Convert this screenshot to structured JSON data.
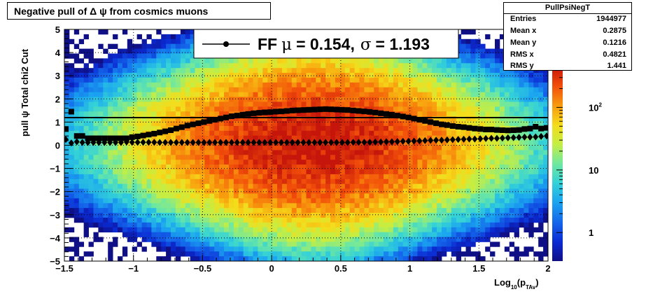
{
  "title": "Negative pull of Δ ψ from cosmics muons",
  "stats": {
    "name": "PullPsiNegT",
    "rows": [
      {
        "key": "Entries",
        "value": "1944977"
      },
      {
        "key": "Mean x",
        "value": "0.2875"
      },
      {
        "key": "Mean y",
        "value": "0.1216"
      },
      {
        "key": "RMS x",
        "value": "0.4821"
      },
      {
        "key": "RMS y",
        "value": "1.441"
      }
    ]
  },
  "colors": {
    "background": "#ffffff",
    "frame": "#000000",
    "grid": "#000000",
    "markers": "#000000",
    "palette": [
      "#0f0f86",
      "#0b2bd3",
      "#1467ea",
      "#1aa3f0",
      "#33d1d8",
      "#6fe8a0",
      "#c4ee44",
      "#f5dc1a",
      "#f89a0d",
      "#f24e0a",
      "#c6160b"
    ]
  },
  "chart_data": {
    "type": "heatmap",
    "title": "Negative pull of Δ ψ from cosmics muons",
    "xlabel": "Log",
    "xlabel_sub": "10",
    "xlabel_tail": "(p",
    "xlabel_sub2": "TAv",
    "xlabel_close": ")",
    "ylabel": "pull ψ   Total chi2 Cut",
    "xlim": [
      -1.5,
      2
    ],
    "ylim": [
      -5,
      5
    ],
    "x_ticks": [
      {
        "value": -1.5,
        "label": "−1.5"
      },
      {
        "value": -1,
        "label": "−1"
      },
      {
        "value": -0.5,
        "label": "−0.5"
      },
      {
        "value": 0,
        "label": "0"
      },
      {
        "value": 0.5,
        "label": "0.5"
      },
      {
        "value": 1,
        "label": "1"
      },
      {
        "value": 1.5,
        "label": "1.5"
      },
      {
        "value": 2,
        "label": "2"
      }
    ],
    "y_ticks": [
      {
        "value": -5,
        "label": "−5"
      },
      {
        "value": -4,
        "label": "−4"
      },
      {
        "value": -3,
        "label": "−3"
      },
      {
        "value": -2,
        "label": "−2"
      },
      {
        "value": -1,
        "label": "−1"
      },
      {
        "value": 0,
        "label": "0"
      },
      {
        "value": 1,
        "label": "1"
      },
      {
        "value": 2,
        "label": "2"
      },
      {
        "value": 3,
        "label": "3"
      },
      {
        "value": 4,
        "label": "4"
      },
      {
        "value": 5,
        "label": "5"
      }
    ],
    "grid": true,
    "log_z": true,
    "z_range": [
      0.35,
      450
    ],
    "z_ticks": [
      {
        "value": 1,
        "label": "1"
      },
      {
        "value": 10,
        "label": "10"
      },
      {
        "value": 100,
        "label": "10",
        "sup": "2"
      }
    ],
    "legend": {
      "position": "top-center",
      "label": "FF",
      "mu_symbol": "μ",
      "mu_value": "=  0.154,",
      "sigma_symbol": "σ",
      "sigma_value": "=   1.193"
    },
    "fit_line": {
      "y": 1.193
    },
    "series": [
      {
        "marker": "square",
        "points": [
          [
            -1.49,
            0.7
          ],
          [
            -1.45,
            1.45
          ],
          [
            -1.41,
            0.4
          ],
          [
            -1.37,
            0.4
          ],
          [
            -1.33,
            0.3
          ],
          [
            -1.29,
            0.3
          ],
          [
            -1.25,
            0.3
          ],
          [
            -1.21,
            0.3
          ],
          [
            -1.17,
            0.3
          ],
          [
            -1.13,
            0.3
          ],
          [
            -1.09,
            0.3
          ],
          [
            -1.05,
            0.3
          ],
          [
            -1.01,
            0.35
          ],
          [
            -0.97,
            0.38
          ],
          [
            -0.93,
            0.42
          ],
          [
            -0.89,
            0.46
          ],
          [
            -0.85,
            0.5
          ],
          [
            -0.81,
            0.55
          ],
          [
            -0.77,
            0.6
          ],
          [
            -0.73,
            0.65
          ],
          [
            -0.69,
            0.72
          ],
          [
            -0.65,
            0.78
          ],
          [
            -0.61,
            0.85
          ],
          [
            -0.57,
            0.9
          ],
          [
            -0.53,
            0.95
          ],
          [
            -0.49,
            1.0
          ],
          [
            -0.45,
            1.05
          ],
          [
            -0.41,
            1.1
          ],
          [
            -0.37,
            1.15
          ],
          [
            -0.33,
            1.2
          ],
          [
            -0.29,
            1.25
          ],
          [
            -0.25,
            1.28
          ],
          [
            -0.21,
            1.32
          ],
          [
            -0.17,
            1.35
          ],
          [
            -0.13,
            1.38
          ],
          [
            -0.09,
            1.4
          ],
          [
            -0.05,
            1.42
          ],
          [
            -0.01,
            1.43
          ],
          [
            0.03,
            1.45
          ],
          [
            0.07,
            1.46
          ],
          [
            0.11,
            1.48
          ],
          [
            0.15,
            1.5
          ],
          [
            0.19,
            1.51
          ],
          [
            0.23,
            1.52
          ],
          [
            0.27,
            1.53
          ],
          [
            0.31,
            1.54
          ],
          [
            0.35,
            1.55
          ],
          [
            0.39,
            1.56
          ],
          [
            0.43,
            1.55
          ],
          [
            0.47,
            1.54
          ],
          [
            0.51,
            1.53
          ],
          [
            0.55,
            1.52
          ],
          [
            0.59,
            1.5
          ],
          [
            0.63,
            1.48
          ],
          [
            0.67,
            1.46
          ],
          [
            0.71,
            1.44
          ],
          [
            0.75,
            1.41
          ],
          [
            0.79,
            1.38
          ],
          [
            0.83,
            1.35
          ],
          [
            0.87,
            1.32
          ],
          [
            0.91,
            1.28
          ],
          [
            0.95,
            1.24
          ],
          [
            0.99,
            1.2
          ],
          [
            1.03,
            1.15
          ],
          [
            1.07,
            1.1
          ],
          [
            1.11,
            1.05
          ],
          [
            1.15,
            1.0
          ],
          [
            1.19,
            0.95
          ],
          [
            1.23,
            0.9
          ],
          [
            1.27,
            0.87
          ],
          [
            1.31,
            0.83
          ],
          [
            1.35,
            0.8
          ],
          [
            1.39,
            0.78
          ],
          [
            1.43,
            0.75
          ],
          [
            1.47,
            0.72
          ],
          [
            1.51,
            0.7
          ],
          [
            1.55,
            0.68
          ],
          [
            1.59,
            0.68
          ],
          [
            1.63,
            0.66
          ],
          [
            1.67,
            0.65
          ],
          [
            1.71,
            0.64
          ],
          [
            1.75,
            0.65
          ],
          [
            1.79,
            0.66
          ],
          [
            1.83,
            0.7
          ],
          [
            1.87,
            0.72
          ],
          [
            1.91,
            0.8
          ],
          [
            1.95,
            0.72
          ],
          [
            1.99,
            0.75
          ]
        ]
      },
      {
        "marker": "diamond",
        "points": [
          [
            -1.49,
            0.25
          ],
          [
            -1.45,
            0.1
          ],
          [
            -1.41,
            0.15
          ],
          [
            -1.37,
            0.12
          ],
          [
            -1.33,
            0.12
          ],
          [
            -1.29,
            0.12
          ],
          [
            -1.25,
            0.12
          ],
          [
            -1.21,
            0.12
          ],
          [
            -1.17,
            0.12
          ],
          [
            -1.13,
            0.12
          ],
          [
            -1.09,
            0.12
          ],
          [
            -1.05,
            0.14
          ],
          [
            -1.01,
            0.13
          ],
          [
            -0.97,
            0.13
          ],
          [
            -0.93,
            0.13
          ],
          [
            -0.89,
            0.13
          ],
          [
            -0.85,
            0.13
          ],
          [
            -0.81,
            0.12
          ],
          [
            -0.77,
            0.12
          ],
          [
            -0.73,
            0.12
          ],
          [
            -0.69,
            0.12
          ],
          [
            -0.65,
            0.12
          ],
          [
            -0.61,
            0.12
          ],
          [
            -0.57,
            0.12
          ],
          [
            -0.53,
            0.12
          ],
          [
            -0.49,
            0.12
          ],
          [
            -0.45,
            0.12
          ],
          [
            -0.41,
            0.12
          ],
          [
            -0.37,
            0.12
          ],
          [
            -0.33,
            0.12
          ],
          [
            -0.29,
            0.12
          ],
          [
            -0.25,
            0.12
          ],
          [
            -0.21,
            0.12
          ],
          [
            -0.17,
            0.12
          ],
          [
            -0.13,
            0.12
          ],
          [
            -0.09,
            0.12
          ],
          [
            -0.05,
            0.12
          ],
          [
            -0.01,
            0.12
          ],
          [
            0.03,
            0.12
          ],
          [
            0.07,
            0.12
          ],
          [
            0.11,
            0.12
          ],
          [
            0.15,
            0.12
          ],
          [
            0.19,
            0.12
          ],
          [
            0.23,
            0.12
          ],
          [
            0.27,
            0.12
          ],
          [
            0.31,
            0.12
          ],
          [
            0.35,
            0.12
          ],
          [
            0.39,
            0.12
          ],
          [
            0.43,
            0.12
          ],
          [
            0.47,
            0.12
          ],
          [
            0.51,
            0.12
          ],
          [
            0.55,
            0.12
          ],
          [
            0.59,
            0.13
          ],
          [
            0.63,
            0.13
          ],
          [
            0.67,
            0.13
          ],
          [
            0.71,
            0.13
          ],
          [
            0.75,
            0.14
          ],
          [
            0.79,
            0.14
          ],
          [
            0.83,
            0.15
          ],
          [
            0.87,
            0.15
          ],
          [
            0.91,
            0.16
          ],
          [
            0.95,
            0.17
          ],
          [
            0.99,
            0.17
          ],
          [
            1.03,
            0.18
          ],
          [
            1.07,
            0.19
          ],
          [
            1.11,
            0.2
          ],
          [
            1.15,
            0.21
          ],
          [
            1.19,
            0.22
          ],
          [
            1.23,
            0.22
          ],
          [
            1.27,
            0.23
          ],
          [
            1.31,
            0.24
          ],
          [
            1.35,
            0.25
          ],
          [
            1.39,
            0.26
          ],
          [
            1.43,
            0.27
          ],
          [
            1.47,
            0.27
          ],
          [
            1.51,
            0.28
          ],
          [
            1.55,
            0.29
          ],
          [
            1.59,
            0.3
          ],
          [
            1.63,
            0.3
          ],
          [
            1.67,
            0.31
          ],
          [
            1.71,
            0.32
          ],
          [
            1.75,
            0.33
          ],
          [
            1.79,
            0.34
          ],
          [
            1.83,
            0.35
          ],
          [
            1.87,
            0.35
          ],
          [
            1.91,
            0.36
          ],
          [
            1.95,
            0.38
          ],
          [
            1.99,
            0.4
          ]
        ]
      }
    ]
  }
}
